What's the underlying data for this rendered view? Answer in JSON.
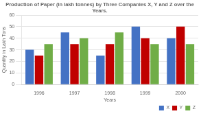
{
  "chart_data": {
    "type": "bar",
    "title": "Production of Paper (in lakh tonnes) by Three Companies X, Y and Z over the\nYears.",
    "xlabel": "Years",
    "ylabel": "Quantity in Lakh Tons",
    "categories": [
      "1996",
      "1997",
      "1998",
      "1999",
      "2000"
    ],
    "series": [
      {
        "name": "X",
        "color": "#4472C4",
        "values": [
          30,
          45,
          25,
          50,
          40
        ]
      },
      {
        "name": "Y",
        "color": "#C00000",
        "values": [
          25,
          35,
          35,
          40,
          50
        ]
      },
      {
        "name": "Z",
        "color": "#70AD47",
        "values": [
          35,
          40,
          45,
          35,
          35
        ]
      }
    ],
    "ylim": [
      0,
      60
    ],
    "yticks": [
      0,
      10,
      20,
      30,
      40,
      50,
      60
    ],
    "grid": true,
    "legend": "lower right"
  }
}
